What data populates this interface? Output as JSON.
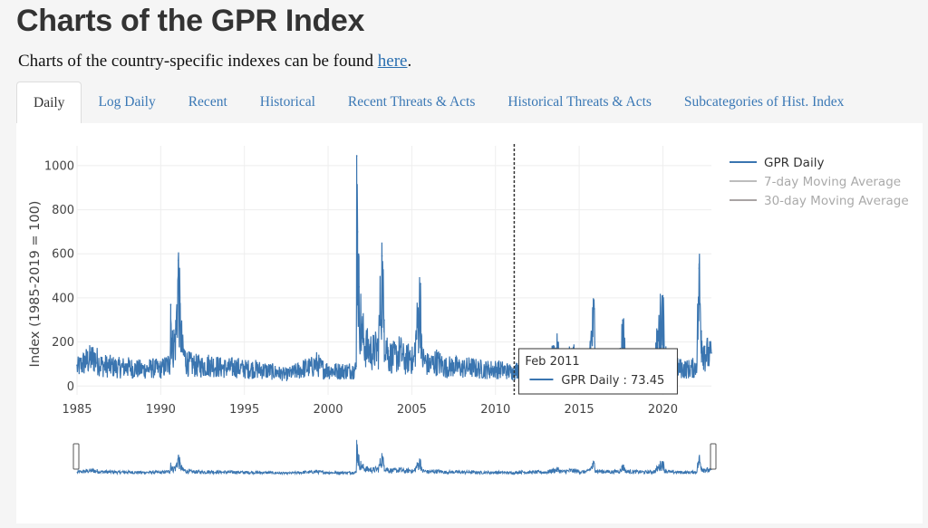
{
  "page": {
    "title": "Charts of the GPR Index",
    "intro_prefix": "Charts of the country-specific indexes can be found ",
    "intro_link": "here",
    "intro_suffix": "."
  },
  "tabs": [
    {
      "label": "Daily",
      "active": true
    },
    {
      "label": "Log Daily",
      "active": false
    },
    {
      "label": "Recent",
      "active": false
    },
    {
      "label": "Historical",
      "active": false
    },
    {
      "label": "Recent Threats & Acts",
      "active": false
    },
    {
      "label": "Historical Threats & Acts",
      "active": false
    },
    {
      "label": "Subcategories of Hist. Index",
      "active": false
    }
  ],
  "colors": {
    "gpr_daily": "#3a75b0",
    "ma7": "#bdbdbd",
    "ma30": "#a9a4a4",
    "hover_line": "#333333"
  },
  "chart_data": {
    "type": "line",
    "title": "",
    "xlabel": "",
    "ylabel": "Index (1985-2019 = 100)",
    "xlim": [
      1985,
      2022.9
    ],
    "ylim": [
      -40,
      1090
    ],
    "x_ticks": [
      "1985",
      "1990",
      "1995",
      "2000",
      "2005",
      "2010",
      "2015",
      "2020"
    ],
    "y_ticks": [
      "0",
      "200",
      "400",
      "600",
      "800",
      "1000"
    ],
    "grid": true,
    "legend": {
      "placement": "right",
      "entries": [
        {
          "name": "GPR Daily",
          "visible": true
        },
        {
          "name": "7-day Moving Average",
          "visible": false
        },
        {
          "name": "30-day Moving Average",
          "visible": false
        }
      ]
    },
    "range_slider": true,
    "series": [
      {
        "name": "GPR Daily",
        "note": "approximate envelope of daily values (year, value)",
        "points": [
          [
            1985.0,
            95
          ],
          [
            1985.5,
            130
          ],
          [
            1986.0,
            150
          ],
          [
            1986.5,
            110
          ],
          [
            1987.0,
            105
          ],
          [
            1987.5,
            98
          ],
          [
            1988.0,
            100
          ],
          [
            1988.5,
            92
          ],
          [
            1989.0,
            88
          ],
          [
            1989.5,
            95
          ],
          [
            1990.0,
            90
          ],
          [
            1990.55,
            120
          ],
          [
            1990.6,
            370
          ],
          [
            1990.7,
            200
          ],
          [
            1990.9,
            260
          ],
          [
            1991.05,
            570
          ],
          [
            1991.15,
            350
          ],
          [
            1991.3,
            180
          ],
          [
            1991.6,
            120
          ],
          [
            1992.0,
            110
          ],
          [
            1992.5,
            105
          ],
          [
            1993.0,
            115
          ],
          [
            1993.5,
            100
          ],
          [
            1994.0,
            95
          ],
          [
            1994.5,
            100
          ],
          [
            1995.0,
            90
          ],
          [
            1995.5,
            92
          ],
          [
            1996.0,
            85
          ],
          [
            1996.5,
            80
          ],
          [
            1997.0,
            70
          ],
          [
            1997.5,
            60
          ],
          [
            1998.0,
            75
          ],
          [
            1998.6,
            95
          ],
          [
            1999.0,
            100
          ],
          [
            1999.3,
            120
          ],
          [
            1999.6,
            95
          ],
          [
            2000.0,
            85
          ],
          [
            2000.5,
            80
          ],
          [
            2001.0,
            80
          ],
          [
            2001.5,
            85
          ],
          [
            2001.68,
            90
          ],
          [
            2001.71,
            1045
          ],
          [
            2001.76,
            700
          ],
          [
            2001.85,
            450
          ],
          [
            2002.0,
            280
          ],
          [
            2002.3,
            200
          ],
          [
            2002.7,
            180
          ],
          [
            2003.0,
            200
          ],
          [
            2003.22,
            590
          ],
          [
            2003.35,
            300
          ],
          [
            2003.6,
            160
          ],
          [
            2004.0,
            150
          ],
          [
            2004.3,
            180
          ],
          [
            2004.6,
            130
          ],
          [
            2004.9,
            160
          ],
          [
            2005.1,
            120
          ],
          [
            2005.52,
            465
          ],
          [
            2005.6,
            150
          ],
          [
            2006.0,
            110
          ],
          [
            2006.5,
            130
          ],
          [
            2007.0,
            100
          ],
          [
            2007.5,
            105
          ],
          [
            2008.0,
            95
          ],
          [
            2008.5,
            100
          ],
          [
            2009.0,
            90
          ],
          [
            2009.5,
            88
          ],
          [
            2010.0,
            90
          ],
          [
            2010.5,
            85
          ],
          [
            2011.0,
            75
          ],
          [
            2011.12,
            73.45
          ],
          [
            2011.5,
            110
          ],
          [
            2012.0,
            95
          ],
          [
            2012.5,
            100
          ],
          [
            2013.0,
            95
          ],
          [
            2013.7,
            180
          ],
          [
            2014.0,
            110
          ],
          [
            2014.5,
            150
          ],
          [
            2014.9,
            130
          ],
          [
            2015.0,
            100
          ],
          [
            2015.5,
            120
          ],
          [
            2015.9,
            350
          ],
          [
            2016.0,
            140
          ],
          [
            2016.5,
            120
          ],
          [
            2017.0,
            110
          ],
          [
            2017.5,
            150
          ],
          [
            2017.6,
            300
          ],
          [
            2017.8,
            130
          ],
          [
            2018.0,
            120
          ],
          [
            2018.5,
            110
          ],
          [
            2019.0,
            100
          ],
          [
            2019.5,
            120
          ],
          [
            2020.0,
            410
          ],
          [
            2020.1,
            160
          ],
          [
            2020.5,
            100
          ],
          [
            2021.0,
            95
          ],
          [
            2021.5,
            90
          ],
          [
            2022.0,
            100
          ],
          [
            2022.17,
            535
          ],
          [
            2022.3,
            250
          ],
          [
            2022.5,
            180
          ],
          [
            2022.9,
            150
          ]
        ]
      }
    ],
    "hover": {
      "x": 2011.12,
      "label": "Feb 2011",
      "series": "GPR Daily",
      "value_text": "73.45"
    }
  }
}
